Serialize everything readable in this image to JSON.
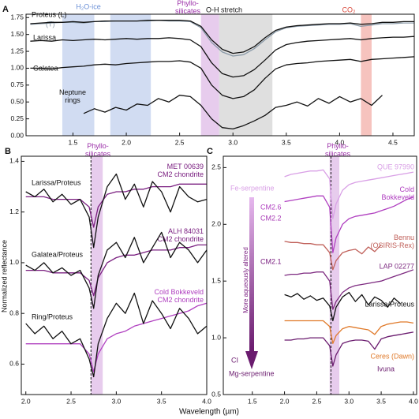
{
  "x_label": "Wavelength (µm)",
  "y_label": "Normalized reflectance",
  "chart_data": [
    {
      "type": "line",
      "panel": "A",
      "xlim": [
        1.06,
        4.7
      ],
      "ylim": [
        0,
        1.8
      ],
      "xticks": [
        1.5,
        {
          "value": 2,
          "label": "2.0"
        },
        2.5,
        {
          "value": 3,
          "label": "3.0"
        },
        3.5,
        {
          "value": 4,
          "label": "4.0"
        },
        4.5
      ],
      "yticks": [
        {
          "value": 0,
          "label": "0.00"
        },
        {
          "value": 0.25,
          "label": "0.25"
        },
        {
          "value": 0.5,
          "label": "0.50"
        },
        {
          "value": 0.75,
          "label": "0.75"
        },
        {
          "value": 1,
          "label": "1.00"
        },
        {
          "value": 1.25,
          "label": "1.25"
        },
        {
          "value": 1.5,
          "label": "1.50"
        },
        {
          "value": 1.75,
          "label": "1.75"
        }
      ],
      "bands": [
        {
          "label": "H₂O-ice",
          "range": [
            1.4,
            1.7
          ],
          "color": "#c9d6f0",
          "text_color": "#6a8fd6"
        },
        {
          "label": null,
          "range": [
            1.85,
            2.23
          ],
          "color": "#c9d6f0"
        },
        {
          "label": "Phyllo-\nsilicates",
          "range": [
            2.7,
            2.87
          ],
          "color": "#e3c3ea",
          "text_color": "#9b2fa8"
        },
        {
          "label": "O-H stretch",
          "range": [
            2.87,
            3.37
          ],
          "color": "#d9d9d9",
          "text_color": "#111"
        },
        {
          "label": "CO₂",
          "range": [
            4.2,
            4.3
          ],
          "color": "#f5b8b3",
          "text_color": "#d9483b"
        }
      ],
      "x": [
        1.1,
        1.2,
        1.3,
        1.4,
        1.5,
        1.6,
        1.7,
        1.8,
        1.9,
        2.0,
        2.1,
        2.2,
        2.3,
        2.4,
        2.5,
        2.6,
        2.7,
        2.8,
        2.9,
        3.0,
        3.1,
        3.2,
        3.3,
        3.4,
        3.5,
        3.6,
        3.7,
        3.8,
        3.9,
        4.0,
        4.1,
        4.2,
        4.3,
        4.4,
        4.5,
        4.6,
        4.7
      ],
      "series": [
        {
          "name": "(T)",
          "color": "#8a9aa8",
          "values": [
            1.65,
            1.66,
            1.67,
            1.68,
            1.68,
            1.67,
            1.69,
            1.69,
            1.7,
            1.7,
            1.7,
            1.7,
            1.71,
            1.7,
            1.7,
            1.69,
            1.6,
            1.38,
            1.24,
            1.18,
            1.2,
            1.29,
            1.42,
            1.54,
            1.6,
            1.62,
            1.63,
            1.64,
            1.65,
            1.65,
            1.66,
            1.62,
            1.64,
            1.66,
            1.66,
            1.67,
            1.67
          ]
        },
        {
          "name": "Proteus (L)",
          "color": "#111111",
          "values": [
            1.66,
            1.67,
            1.68,
            1.68,
            1.69,
            1.68,
            1.69,
            1.7,
            1.7,
            1.7,
            1.7,
            1.71,
            1.71,
            1.71,
            1.71,
            1.7,
            1.62,
            1.42,
            1.28,
            1.22,
            1.24,
            1.32,
            1.45,
            1.56,
            1.61,
            1.63,
            1.64,
            1.65,
            1.66,
            1.66,
            1.67,
            1.65,
            1.66,
            1.68,
            1.68,
            1.69,
            1.69
          ]
        },
        {
          "name": "Larissa",
          "color": "#111111",
          "values": [
            1.4,
            1.41,
            1.4,
            1.42,
            1.41,
            1.42,
            1.43,
            1.42,
            1.43,
            1.44,
            1.43,
            1.44,
            1.44,
            1.45,
            1.44,
            1.42,
            1.32,
            1.08,
            0.92,
            0.87,
            0.89,
            0.98,
            1.12,
            1.27,
            1.35,
            1.38,
            1.4,
            1.41,
            1.42,
            1.43,
            1.44,
            1.42,
            1.44,
            1.45,
            1.46,
            1.46,
            1.47
          ]
        },
        {
          "name": "Galatea",
          "color": "#111111",
          "values": [
            1.0,
            1.0,
            0.99,
            1.01,
            1.02,
            1.03,
            1.05,
            1.06,
            1.05,
            1.07,
            1.08,
            1.09,
            1.1,
            1.1,
            1.11,
            1.09,
            1.0,
            0.75,
            0.6,
            0.55,
            0.58,
            0.68,
            0.85,
            0.99,
            1.05,
            1.07,
            1.08,
            1.1,
            1.11,
            1.12,
            1.13,
            1.1,
            1.13,
            1.14,
            1.15,
            1.16,
            1.17
          ]
        },
        {
          "name": "Neptune\nrings",
          "color": "#111111",
          "x": [
            1.6,
            1.7,
            1.8,
            1.9,
            2.0,
            2.1,
            2.2,
            2.3,
            2.4,
            2.5,
            2.6,
            2.7,
            2.8,
            2.9,
            3.0,
            3.1,
            3.2,
            3.3,
            3.4,
            3.5,
            3.6,
            3.7,
            3.8,
            3.9,
            4.0,
            4.1,
            4.2,
            4.3,
            4.4
          ],
          "values": [
            0.33,
            0.4,
            0.35,
            0.42,
            0.38,
            0.47,
            0.45,
            0.55,
            0.5,
            0.6,
            0.58,
            0.45,
            0.25,
            0.12,
            0.1,
            0.15,
            0.22,
            0.3,
            0.42,
            0.45,
            0.5,
            0.44,
            0.55,
            0.48,
            0.58,
            0.5,
            0.55,
            0.45,
            0.6
          ]
        }
      ],
      "annotations": []
    },
    {
      "type": "line",
      "panel": "B",
      "xlim": [
        1.95,
        4.0
      ],
      "ylim": [
        0.48,
        1.42
      ],
      "xticks": [
        {
          "value": 2,
          "label": "2.0"
        },
        2.5,
        {
          "value": 3,
          "label": "3.0"
        },
        3.5,
        {
          "value": 4,
          "label": "4.0"
        }
      ],
      "yticks": [
        0.6,
        0.8,
        {
          "value": 1,
          "label": "1.0"
        },
        1.2,
        1.4
      ],
      "bands": [
        {
          "label": "Phyllo-\nsilicates",
          "range": [
            2.72,
            2.85
          ],
          "color": "#e3c3ea",
          "text_color": "#9b2fa8"
        }
      ],
      "vline": 2.72,
      "x": [
        2.0,
        2.1,
        2.2,
        2.3,
        2.4,
        2.5,
        2.6,
        2.7,
        2.75,
        2.8,
        2.9,
        3.0,
        3.1,
        3.2,
        3.3,
        3.4,
        3.5,
        3.6,
        3.7,
        3.8,
        3.9,
        4.0
      ],
      "series": [
        {
          "name": "MET 00639\nCM2 chondrite",
          "color": "#7a1f80",
          "values": [
            1.26,
            1.26,
            1.26,
            1.25,
            1.25,
            1.25,
            1.25,
            1.22,
            1.14,
            1.22,
            1.27,
            1.28,
            1.28,
            1.29,
            1.29,
            1.3,
            1.3,
            1.3,
            1.31,
            1.31,
            1.31,
            1.31
          ]
        },
        {
          "name": "Larissa/Proteus",
          "color": "#111111",
          "values": [
            1.28,
            1.26,
            1.29,
            1.24,
            1.27,
            1.23,
            1.25,
            1.18,
            1.06,
            1.18,
            1.3,
            1.35,
            1.25,
            1.31,
            1.22,
            1.32,
            1.28,
            1.2,
            1.3,
            1.26,
            1.24,
            1.25
          ]
        },
        {
          "name": "ALH 84031\nCM2 chondrite",
          "color": "#7a1f80",
          "values": [
            0.97,
            0.97,
            0.97,
            0.96,
            0.96,
            0.96,
            0.96,
            0.93,
            0.87,
            0.94,
            1.0,
            1.02,
            1.03,
            1.03,
            1.04,
            1.05,
            1.05,
            1.05,
            1.06,
            1.06,
            1.07,
            1.07
          ]
        },
        {
          "name": "Galatea/Proteus",
          "color": "#111111",
          "values": [
            0.99,
            0.97,
            1.0,
            0.96,
            0.98,
            0.95,
            0.97,
            0.9,
            0.82,
            0.95,
            1.05,
            1.08,
            1.02,
            1.1,
            1.0,
            1.06,
            1.12,
            1.02,
            1.08,
            1.05,
            1.0,
            1.05
          ]
        },
        {
          "name": "Cold Bokkeveld\nCM2 chondrite",
          "color": "#b040c0",
          "values": [
            0.68,
            0.68,
            0.68,
            0.68,
            0.68,
            0.68,
            0.68,
            0.64,
            0.57,
            0.64,
            0.7,
            0.72,
            0.73,
            0.75,
            0.76,
            0.77,
            0.78,
            0.79,
            0.8,
            0.81,
            0.83,
            0.84
          ]
        },
        {
          "name": "Ring/Proteus",
          "color": "#111111",
          "values": [
            0.76,
            0.72,
            0.75,
            0.7,
            0.73,
            0.68,
            0.7,
            0.62,
            0.55,
            0.68,
            0.78,
            0.84,
            0.8,
            0.88,
            0.76,
            0.85,
            0.8,
            0.74,
            0.82,
            0.78,
            0.72,
            0.75
          ]
        }
      ],
      "annotations": []
    },
    {
      "type": "line",
      "panel": "C",
      "xlim": [
        1.05,
        4.05
      ],
      "ylim": [
        0.5,
        2.6
      ],
      "xticks": [
        1.5,
        {
          "value": 2,
          "label": "2.0"
        },
        2.5,
        {
          "value": 3,
          "label": "3.0"
        },
        3.5,
        {
          "value": 4,
          "label": "4.0"
        }
      ],
      "yticks": [
        0.5,
        {
          "value": 1,
          "label": "1.0"
        },
        1.5,
        {
          "value": 2,
          "label": "2.0"
        },
        2.5
      ],
      "bands": [
        {
          "label": "Phyllo-\nsilicates",
          "range": [
            2.7,
            2.85
          ],
          "color": "#e3c3ea",
          "text_color": "#9b2fa8"
        }
      ],
      "vline": 2.72,
      "x": [
        2.0,
        2.1,
        2.2,
        2.3,
        2.4,
        2.5,
        2.6,
        2.7,
        2.75,
        2.8,
        2.9,
        3.0,
        3.1,
        3.2,
        3.3,
        3.4,
        3.5,
        3.6,
        3.7,
        3.8,
        3.9,
        4.0
      ],
      "series": [
        {
          "name": "QUE 97990",
          "color": "#d9a0e6",
          "values": [
            2.42,
            2.44,
            2.45,
            2.46,
            2.47,
            2.47,
            2.48,
            2.4,
            2.05,
            2.18,
            2.3,
            2.35,
            2.37,
            2.38,
            2.39,
            2.4,
            2.41,
            2.42,
            2.43,
            2.44,
            2.45,
            2.46
          ]
        },
        {
          "name": "Cold\nBokkeveld",
          "color": "#b040c0",
          "values": [
            2.2,
            2.21,
            2.22,
            2.23,
            2.24,
            2.25,
            2.25,
            2.15,
            1.75,
            1.88,
            2.0,
            2.05,
            2.07,
            2.08,
            2.09,
            2.1,
            2.12,
            2.14,
            2.16,
            2.19,
            2.22,
            2.24
          ]
        },
        {
          "name": "Bennu\n(OSIRIS-Rex)",
          "color": "#c0605a",
          "values": [
            1.85,
            1.84,
            1.84,
            1.83,
            1.83,
            1.82,
            1.82,
            1.75,
            1.6,
            1.68,
            1.75,
            1.77,
            1.78,
            1.74,
            1.8,
            1.76,
            1.82,
            null,
            null,
            null,
            null,
            null
          ]
        },
        {
          "name": "LAP 02277",
          "color": "#7d2a80",
          "values": [
            1.55,
            1.56,
            1.56,
            1.57,
            1.57,
            1.58,
            1.58,
            1.5,
            1.25,
            1.32,
            1.4,
            1.44,
            1.46,
            1.47,
            1.48,
            1.49,
            1.5,
            1.52,
            1.54,
            1.56,
            1.58,
            1.6
          ]
        },
        {
          "name": "Larissa/Proteus",
          "color": "#111111",
          "values": [
            1.38,
            1.36,
            1.39,
            1.34,
            1.37,
            1.33,
            1.35,
            1.28,
            1.15,
            1.27,
            1.36,
            1.4,
            1.32,
            1.38,
            1.29,
            1.36,
            1.33,
            1.27,
            1.35,
            1.3,
            null,
            null
          ]
        },
        {
          "name": "Ceres (Dawn)",
          "color": "#e07a2a",
          "values": [
            1.15,
            1.15,
            1.15,
            1.15,
            1.15,
            1.15,
            1.15,
            1.1,
            0.95,
            1.02,
            1.08,
            1.1,
            1.09,
            1.08,
            1.07,
            1.03,
            1.1,
            1.12,
            1.13,
            1.14,
            1.14,
            1.13
          ]
        },
        {
          "name": "Ivuna",
          "color": "#6a1b6e",
          "values": [
            0.98,
            0.98,
            0.99,
            0.99,
            1.0,
            1.0,
            1.0,
            0.93,
            0.75,
            0.85,
            0.95,
            0.97,
            0.98,
            0.98,
            0.97,
            0.9,
            0.99,
            1.01,
            1.02,
            1.03,
            1.04,
            1.05
          ]
        }
      ],
      "annotations": [
        "Fe-serpentine",
        "CM2.6",
        "CM2.2",
        "CM2.1",
        "CI",
        "Mg-serpentine",
        "More aqueously altered"
      ]
    }
  ]
}
